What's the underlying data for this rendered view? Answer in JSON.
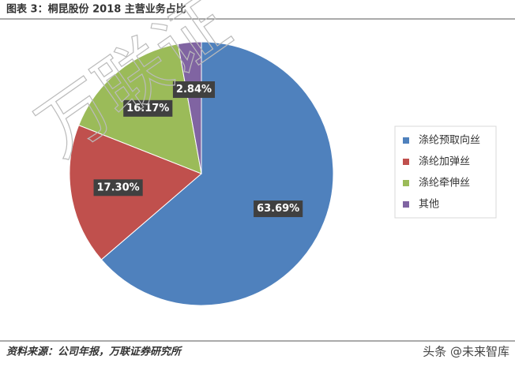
{
  "chart_data": {
    "type": "pie",
    "title": "图表 3：桐昆股份 2018 主营业务占比",
    "categories": [
      "涤纶预取向丝",
      "涤纶加弹丝",
      "涤纶牵伸丝",
      "其他"
    ],
    "values": [
      63.69,
      17.3,
      16.17,
      2.84
    ],
    "value_labels": [
      "63.69%",
      "17.30%",
      "16.17%",
      "2.84%"
    ],
    "colors": [
      "#4f81bd",
      "#c0504d",
      "#9bbb59",
      "#8064a2"
    ],
    "legend": "right",
    "source": "资料来源：公司年报，万联证券研究所",
    "watermark": "万联证",
    "footer_mark": "头条 @未来智库"
  }
}
